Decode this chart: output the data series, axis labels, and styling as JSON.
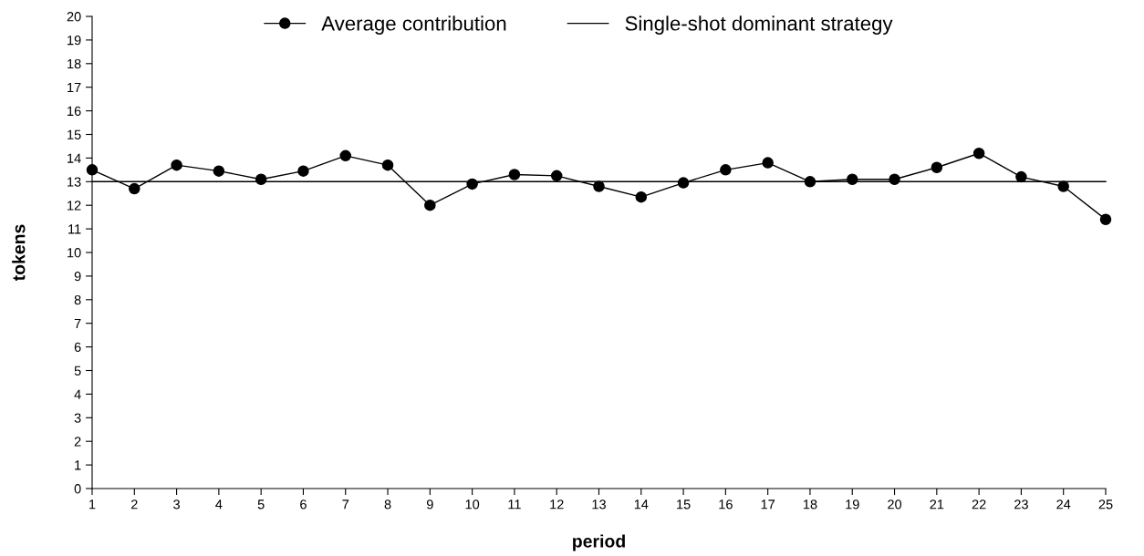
{
  "chart_data": {
    "type": "line",
    "xlabel": "period",
    "ylabel": "tokens",
    "x": [
      1,
      2,
      3,
      4,
      5,
      6,
      7,
      8,
      9,
      10,
      11,
      12,
      13,
      14,
      15,
      16,
      17,
      18,
      19,
      20,
      21,
      22,
      23,
      24,
      25
    ],
    "xlim": [
      1,
      25
    ],
    "xticks": [
      1,
      2,
      3,
      4,
      5,
      6,
      7,
      8,
      9,
      10,
      11,
      12,
      13,
      14,
      15,
      16,
      17,
      18,
      19,
      20,
      21,
      22,
      23,
      24,
      25
    ],
    "ylim": [
      0,
      20
    ],
    "yticks": [
      0,
      1,
      2,
      3,
      4,
      5,
      6,
      7,
      8,
      9,
      10,
      11,
      12,
      13,
      14,
      15,
      16,
      17,
      18,
      19,
      20
    ],
    "grid": false,
    "legend": "top",
    "series": [
      {
        "name": "Average contribution",
        "color": "#000000",
        "marker": "circle",
        "values": [
          13.5,
          12.7,
          13.7,
          13.45,
          13.1,
          13.45,
          14.1,
          13.7,
          12.0,
          12.9,
          13.3,
          13.25,
          12.8,
          12.35,
          12.95,
          13.5,
          13.8,
          13.0,
          13.1,
          13.1,
          13.6,
          14.2,
          13.2,
          12.8,
          11.4
        ]
      },
      {
        "name": "Single-shot dominant strategy",
        "color": "#000000",
        "marker": "none",
        "values": [
          13,
          13,
          13,
          13,
          13,
          13,
          13,
          13,
          13,
          13,
          13,
          13,
          13,
          13,
          13,
          13,
          13,
          13,
          13,
          13,
          13,
          13,
          13,
          13,
          13
        ]
      }
    ]
  }
}
